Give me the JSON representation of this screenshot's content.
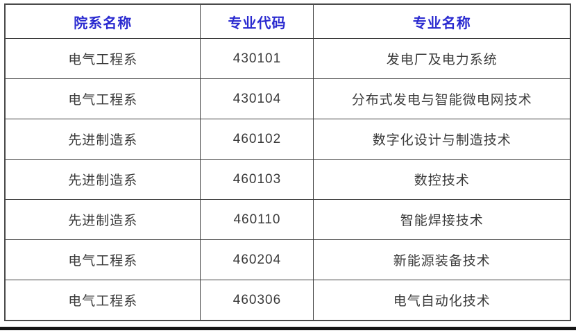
{
  "table": {
    "columns": [
      "院系名称",
      "专业代码",
      "专业名称"
    ],
    "rows": [
      [
        "电气工程系",
        "430101",
        "发电厂及电力系统"
      ],
      [
        "电气工程系",
        "430104",
        "分布式发电与智能微电网技术"
      ],
      [
        "先进制造系",
        "460102",
        "数字化设计与制造技术"
      ],
      [
        "先进制造系",
        "460103",
        "数控技术"
      ],
      [
        "先进制造系",
        "460110",
        "智能焊接技术"
      ],
      [
        "电气工程系",
        "460204",
        "新能源装备技术"
      ],
      [
        "电气工程系",
        "460306",
        "电气自动化技术"
      ]
    ]
  },
  "colors": {
    "header_text": "#2a2ad0",
    "body_text": "#3a3a3a",
    "border_inner": "#3d3d3d",
    "border_outer": "#4a4a4a",
    "bottom_bar": "#161616",
    "background": "#ffffff"
  }
}
